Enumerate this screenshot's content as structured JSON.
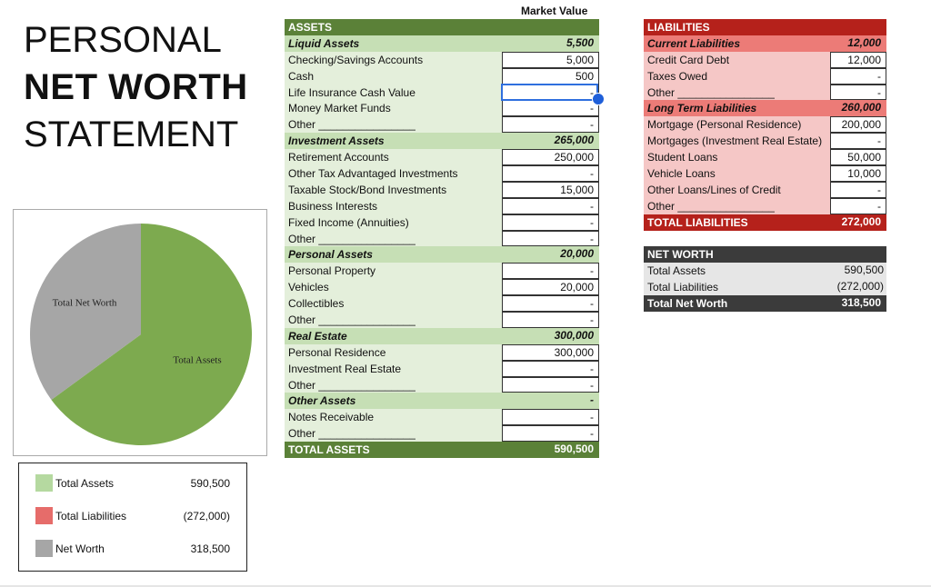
{
  "title": {
    "line1": "PERSONAL",
    "line2": "NET WORTH",
    "line3": "STATEMENT"
  },
  "market_value_header": "Market Value",
  "colors": {
    "assets_dark": "#5b8138",
    "assets_sub": "#c6dfb5",
    "assets_item": "#e4efdb",
    "liab_dark": "#b5211b",
    "liab_sub": "#ec7b77",
    "liab_item": "#f5c7c6",
    "nw_dark": "#3b3b3b",
    "pie_assets": "#7daa4f",
    "pie_networth": "#a6a6a6",
    "legend_liab": "#e66c6a",
    "legend_assets": "#b5d9a0"
  },
  "assets": {
    "header": "ASSETS",
    "sections": [
      {
        "name": "Liquid Assets",
        "total": "5,500",
        "items": [
          {
            "label": "Checking/Savings Accounts",
            "value": "5,000"
          },
          {
            "label": "Cash",
            "value": "500"
          },
          {
            "label": "Life Insurance Cash Value",
            "value": "-"
          },
          {
            "label": "Money Market Funds",
            "value": "-"
          },
          {
            "label": "Other ________________",
            "value": "-"
          }
        ]
      },
      {
        "name": "Investment Assets",
        "total": "265,000",
        "items": [
          {
            "label": "Retirement Accounts",
            "value": "250,000"
          },
          {
            "label": "Other Tax Advantaged Investments",
            "value": "-"
          },
          {
            "label": "Taxable Stock/Bond Investments",
            "value": "15,000"
          },
          {
            "label": "Business Interests",
            "value": "-"
          },
          {
            "label": "Fixed Income (Annuities)",
            "value": "-"
          },
          {
            "label": "Other ________________",
            "value": "-"
          }
        ]
      },
      {
        "name": "Personal Assets",
        "total": "20,000",
        "items": [
          {
            "label": "Personal Property",
            "value": "-"
          },
          {
            "label": "Vehicles",
            "value": "20,000"
          },
          {
            "label": "Collectibles",
            "value": "-"
          },
          {
            "label": "Other ________________",
            "value": "-"
          }
        ]
      },
      {
        "name": "Real Estate",
        "total": "300,000",
        "items": [
          {
            "label": "Personal Residence",
            "value": "300,000"
          },
          {
            "label": "Investment Real Estate",
            "value": "-"
          },
          {
            "label": "Other ________________",
            "value": "-"
          }
        ]
      },
      {
        "name": "Other Assets",
        "total": "-",
        "items": [
          {
            "label": "Notes Receivable",
            "value": "-"
          },
          {
            "label": "Other ________________",
            "value": "-"
          }
        ]
      }
    ],
    "total_label": "TOTAL ASSETS",
    "total_value": "590,500"
  },
  "liabilities": {
    "header": "LIABILITIES",
    "sections": [
      {
        "name": "Current Liabilities",
        "total": "12,000",
        "items": [
          {
            "label": "Credit Card Debt",
            "value": "12,000"
          },
          {
            "label": "Taxes Owed",
            "value": "-"
          },
          {
            "label": "Other ________________",
            "value": "-"
          }
        ]
      },
      {
        "name": "Long Term Liabilities",
        "total": "260,000",
        "items": [
          {
            "label": "Mortgage (Personal Residence)",
            "value": "200,000"
          },
          {
            "label": "Mortgages (Investment Real Estate)",
            "value": "-"
          },
          {
            "label": "Student Loans",
            "value": "50,000"
          },
          {
            "label": "Vehicle Loans",
            "value": "10,000"
          },
          {
            "label": "Other Loans/Lines of Credit",
            "value": "-"
          },
          {
            "label": "Other ________________",
            "value": "-"
          }
        ]
      }
    ],
    "total_label": "TOTAL LIABILITIES",
    "total_value": "272,000"
  },
  "net_worth": {
    "header": "NET WORTH",
    "items": [
      {
        "label": "Total Assets",
        "value": "590,500"
      },
      {
        "label": "Total Liabilities",
        "value": "(272,000)"
      }
    ],
    "total_label": "Total Net Worth",
    "total_value": "318,500"
  },
  "chart_data": {
    "type": "pie",
    "slices": [
      {
        "label": "Total Assets",
        "value": 590500,
        "color": "#7daa4f"
      },
      {
        "label": "Total Net Worth",
        "value": 318500,
        "color": "#a6a6a6"
      }
    ]
  },
  "legend": {
    "items": [
      {
        "label": "Total Assets",
        "value": "590,500",
        "color": "#b5d9a0"
      },
      {
        "label": "Total Liabilities",
        "value": "(272,000)",
        "color": "#e66c6a"
      },
      {
        "label": "Net Worth",
        "value": "318,500",
        "color": "#a6a6a6"
      }
    ]
  }
}
